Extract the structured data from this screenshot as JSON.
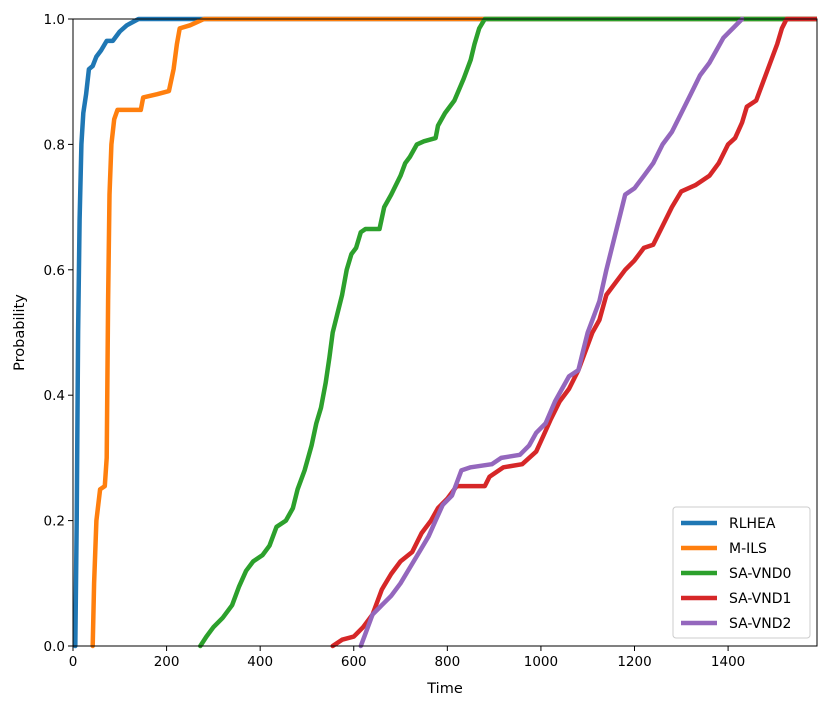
{
  "chart_data": {
    "type": "line",
    "title": "",
    "xlabel": "Time",
    "ylabel": "Probability",
    "xlim": [
      0,
      1590
    ],
    "ylim": [
      0,
      1.0
    ],
    "xticks": [
      0,
      200,
      400,
      600,
      800,
      1000,
      1200,
      1400
    ],
    "yticks": [
      "0.0",
      "0.2",
      "0.4",
      "0.6",
      "0.8",
      "1.0"
    ],
    "grid": false,
    "legend_position": "bottom-right",
    "series": [
      {
        "name": "RLHEA",
        "color": "#1f77b4",
        "points": [
          [
            5,
            0
          ],
          [
            8,
            0.2
          ],
          [
            11,
            0.5
          ],
          [
            14,
            0.68
          ],
          [
            18,
            0.8
          ],
          [
            22,
            0.85
          ],
          [
            28,
            0.88
          ],
          [
            34,
            0.92
          ],
          [
            42,
            0.925
          ],
          [
            50,
            0.94
          ],
          [
            60,
            0.95
          ],
          [
            72,
            0.965
          ],
          [
            85,
            0.965
          ],
          [
            100,
            0.98
          ],
          [
            115,
            0.99
          ],
          [
            140,
            1.0
          ],
          [
            1590,
            1.0
          ]
        ]
      },
      {
        "name": "M-ILS",
        "color": "#ff7f0e",
        "points": [
          [
            42,
            0
          ],
          [
            45,
            0.1
          ],
          [
            50,
            0.2
          ],
          [
            58,
            0.25
          ],
          [
            68,
            0.255
          ],
          [
            72,
            0.3
          ],
          [
            75,
            0.55
          ],
          [
            78,
            0.72
          ],
          [
            82,
            0.8
          ],
          [
            88,
            0.84
          ],
          [
            95,
            0.855
          ],
          [
            145,
            0.855
          ],
          [
            150,
            0.875
          ],
          [
            180,
            0.88
          ],
          [
            205,
            0.885
          ],
          [
            215,
            0.92
          ],
          [
            222,
            0.96
          ],
          [
            228,
            0.985
          ],
          [
            250,
            0.99
          ],
          [
            280,
            1.0
          ],
          [
            1590,
            1.0
          ]
        ]
      },
      {
        "name": "SA-VND0",
        "color": "#2ca02c",
        "points": [
          [
            272,
            0
          ],
          [
            285,
            0.015
          ],
          [
            300,
            0.03
          ],
          [
            320,
            0.045
          ],
          [
            340,
            0.065
          ],
          [
            355,
            0.095
          ],
          [
            370,
            0.12
          ],
          [
            385,
            0.135
          ],
          [
            405,
            0.145
          ],
          [
            420,
            0.16
          ],
          [
            435,
            0.19
          ],
          [
            455,
            0.2
          ],
          [
            470,
            0.22
          ],
          [
            480,
            0.25
          ],
          [
            495,
            0.28
          ],
          [
            510,
            0.32
          ],
          [
            520,
            0.355
          ],
          [
            530,
            0.38
          ],
          [
            540,
            0.42
          ],
          [
            548,
            0.46
          ],
          [
            555,
            0.5
          ],
          [
            565,
            0.53
          ],
          [
            575,
            0.56
          ],
          [
            585,
            0.6
          ],
          [
            595,
            0.625
          ],
          [
            605,
            0.635
          ],
          [
            615,
            0.66
          ],
          [
            625,
            0.665
          ],
          [
            655,
            0.665
          ],
          [
            665,
            0.7
          ],
          [
            680,
            0.72
          ],
          [
            700,
            0.75
          ],
          [
            710,
            0.77
          ],
          [
            720,
            0.78
          ],
          [
            735,
            0.8
          ],
          [
            750,
            0.805
          ],
          [
            775,
            0.81
          ],
          [
            780,
            0.83
          ],
          [
            795,
            0.85
          ],
          [
            815,
            0.87
          ],
          [
            835,
            0.905
          ],
          [
            850,
            0.935
          ],
          [
            858,
            0.96
          ],
          [
            868,
            0.985
          ],
          [
            880,
            1.0
          ],
          [
            1590,
            1.0
          ]
        ]
      },
      {
        "name": "SA-VND1",
        "color": "#d62728",
        "points": [
          [
            555,
            0
          ],
          [
            575,
            0.01
          ],
          [
            600,
            0.015
          ],
          [
            620,
            0.03
          ],
          [
            640,
            0.05
          ],
          [
            660,
            0.09
          ],
          [
            680,
            0.115
          ],
          [
            700,
            0.135
          ],
          [
            725,
            0.15
          ],
          [
            745,
            0.18
          ],
          [
            765,
            0.2
          ],
          [
            780,
            0.22
          ],
          [
            800,
            0.235
          ],
          [
            820,
            0.255
          ],
          [
            880,
            0.255
          ],
          [
            890,
            0.27
          ],
          [
            920,
            0.285
          ],
          [
            960,
            0.29
          ],
          [
            990,
            0.31
          ],
          [
            1005,
            0.335
          ],
          [
            1020,
            0.36
          ],
          [
            1040,
            0.39
          ],
          [
            1060,
            0.41
          ],
          [
            1080,
            0.44
          ],
          [
            1095,
            0.47
          ],
          [
            1110,
            0.5
          ],
          [
            1125,
            0.52
          ],
          [
            1140,
            0.56
          ],
          [
            1160,
            0.58
          ],
          [
            1180,
            0.6
          ],
          [
            1200,
            0.615
          ],
          [
            1220,
            0.635
          ],
          [
            1240,
            0.64
          ],
          [
            1260,
            0.67
          ],
          [
            1280,
            0.7
          ],
          [
            1300,
            0.725
          ],
          [
            1330,
            0.735
          ],
          [
            1360,
            0.75
          ],
          [
            1380,
            0.77
          ],
          [
            1400,
            0.8
          ],
          [
            1415,
            0.81
          ],
          [
            1430,
            0.835
          ],
          [
            1440,
            0.86
          ],
          [
            1460,
            0.87
          ],
          [
            1475,
            0.9
          ],
          [
            1490,
            0.93
          ],
          [
            1505,
            0.96
          ],
          [
            1515,
            0.985
          ],
          [
            1525,
            1.0
          ],
          [
            1590,
            1.0
          ]
        ]
      },
      {
        "name": "SA-VND2",
        "color": "#9467bd",
        "points": [
          [
            615,
            0
          ],
          [
            625,
            0.02
          ],
          [
            640,
            0.05
          ],
          [
            660,
            0.065
          ],
          [
            680,
            0.08
          ],
          [
            700,
            0.1
          ],
          [
            720,
            0.125
          ],
          [
            740,
            0.15
          ],
          [
            760,
            0.175
          ],
          [
            775,
            0.2
          ],
          [
            790,
            0.225
          ],
          [
            810,
            0.24
          ],
          [
            820,
            0.26
          ],
          [
            830,
            0.28
          ],
          [
            850,
            0.285
          ],
          [
            895,
            0.29
          ],
          [
            915,
            0.3
          ],
          [
            955,
            0.305
          ],
          [
            975,
            0.32
          ],
          [
            990,
            0.34
          ],
          [
            1010,
            0.355
          ],
          [
            1030,
            0.39
          ],
          [
            1045,
            0.41
          ],
          [
            1060,
            0.43
          ],
          [
            1080,
            0.44
          ],
          [
            1090,
            0.47
          ],
          [
            1100,
            0.5
          ],
          [
            1110,
            0.52
          ],
          [
            1125,
            0.55
          ],
          [
            1140,
            0.6
          ],
          [
            1150,
            0.63
          ],
          [
            1160,
            0.66
          ],
          [
            1170,
            0.69
          ],
          [
            1180,
            0.72
          ],
          [
            1200,
            0.73
          ],
          [
            1220,
            0.75
          ],
          [
            1240,
            0.77
          ],
          [
            1260,
            0.8
          ],
          [
            1280,
            0.82
          ],
          [
            1300,
            0.85
          ],
          [
            1320,
            0.88
          ],
          [
            1340,
            0.91
          ],
          [
            1360,
            0.93
          ],
          [
            1375,
            0.95
          ],
          [
            1390,
            0.97
          ],
          [
            1410,
            0.985
          ],
          [
            1430,
            1.0
          ]
        ]
      }
    ]
  }
}
